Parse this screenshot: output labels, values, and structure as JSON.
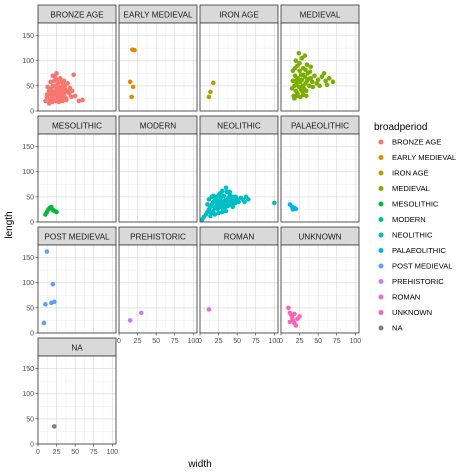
{
  "chart_data": {
    "type": "scatter",
    "facet_by": "broadperiod",
    "xlabel": "width",
    "ylabel": "length",
    "xlim": [
      0,
      105
    ],
    "ylim": [
      0,
      175
    ],
    "x_ticks": [
      0,
      25,
      50,
      75,
      100
    ],
    "y_ticks": [
      0,
      50,
      100,
      150
    ],
    "grid": true,
    "legend_title": "broadperiod",
    "legend_placement": "right",
    "panels": [
      {
        "name": "BRONZE AGE",
        "color": "#F8766D",
        "points": [
          [
            10,
            20
          ],
          [
            12,
            28
          ],
          [
            14,
            35
          ],
          [
            15,
            40
          ],
          [
            16,
            22
          ],
          [
            18,
            30
          ],
          [
            18,
            45
          ],
          [
            20,
            50
          ],
          [
            20,
            25
          ],
          [
            22,
            38
          ],
          [
            22,
            60
          ],
          [
            24,
            32
          ],
          [
            25,
            44
          ],
          [
            26,
            28
          ],
          [
            27,
            55
          ],
          [
            28,
            40
          ],
          [
            29,
            34
          ],
          [
            30,
            48
          ],
          [
            30,
            30
          ],
          [
            31,
            42
          ],
          [
            32,
            26
          ],
          [
            33,
            36
          ],
          [
            34,
            52
          ],
          [
            35,
            30
          ],
          [
            36,
            45
          ],
          [
            37,
            38
          ],
          [
            38,
            22
          ],
          [
            40,
            40
          ],
          [
            42,
            35
          ],
          [
            45,
            28
          ],
          [
            20,
            70
          ],
          [
            23,
            68
          ],
          [
            25,
            75
          ],
          [
            30,
            65
          ],
          [
            35,
            60
          ],
          [
            40,
            55
          ],
          [
            48,
            72
          ],
          [
            15,
            15
          ],
          [
            19,
            18
          ],
          [
            24,
            20
          ],
          [
            28,
            18
          ],
          [
            33,
            20
          ],
          [
            38,
            25
          ],
          [
            13,
            48
          ],
          [
            17,
            58
          ],
          [
            26,
            62
          ],
          [
            32,
            58
          ],
          [
            36,
            50
          ],
          [
            43,
            46
          ],
          [
            50,
            30
          ],
          [
            55,
            20
          ],
          [
            60,
            22
          ],
          [
            46,
            40
          ],
          [
            12,
            32
          ],
          [
            21,
            34
          ],
          [
            29,
            24
          ],
          [
            34,
            44
          ],
          [
            24,
            50
          ],
          [
            18,
            38
          ],
          [
            27,
            36
          ]
        ]
      },
      {
        "name": "EARLY MEDIEVAL",
        "color": "#DE8C00",
        "points": [
          [
            18,
            122
          ],
          [
            21,
            121
          ],
          [
            15,
            58
          ],
          [
            19,
            48
          ],
          [
            17,
            28
          ]
        ]
      },
      {
        "name": "IRON AGE",
        "color": "#B79F00",
        "points": [
          [
            18,
            56
          ],
          [
            14,
            38
          ],
          [
            12,
            28
          ]
        ]
      },
      {
        "name": "MEDIEVAL",
        "color": "#7CAE00",
        "points": [
          [
            15,
            45
          ],
          [
            16,
            60
          ],
          [
            17,
            30
          ],
          [
            18,
            50
          ],
          [
            19,
            70
          ],
          [
            20,
            40
          ],
          [
            21,
            55
          ],
          [
            22,
            35
          ],
          [
            23,
            65
          ],
          [
            24,
            48
          ],
          [
            25,
            80
          ],
          [
            26,
            58
          ],
          [
            27,
            42
          ],
          [
            28,
            62
          ],
          [
            29,
            50
          ],
          [
            30,
            72
          ],
          [
            31,
            45
          ],
          [
            32,
            68
          ],
          [
            33,
            55
          ],
          [
            34,
            40
          ],
          [
            35,
            60
          ],
          [
            36,
            75
          ],
          [
            38,
            50
          ],
          [
            40,
            65
          ],
          [
            42,
            58
          ],
          [
            45,
            70
          ],
          [
            48,
            55
          ],
          [
            50,
            62
          ],
          [
            55,
            68
          ],
          [
            60,
            60
          ],
          [
            65,
            65
          ],
          [
            70,
            58
          ],
          [
            20,
            100
          ],
          [
            22,
            90
          ],
          [
            25,
            95
          ],
          [
            28,
            105
          ],
          [
            30,
            85
          ],
          [
            35,
            92
          ],
          [
            40,
            88
          ],
          [
            18,
            25
          ],
          [
            22,
            30
          ],
          [
            26,
            28
          ],
          [
            30,
            32
          ],
          [
            24,
            115
          ],
          [
            32,
            110
          ],
          [
            16,
            80
          ],
          [
            19,
            85
          ],
          [
            27,
            72
          ],
          [
            33,
            82
          ],
          [
            37,
            64
          ],
          [
            43,
            48
          ],
          [
            52,
            50
          ],
          [
            58,
            75
          ],
          [
            62,
            52
          ],
          [
            21,
            62
          ],
          [
            29,
            38
          ],
          [
            34,
            30
          ],
          [
            39,
            78
          ]
        ]
      },
      {
        "name": "MESOLITHIC",
        "color": "#00BA38",
        "points": [
          [
            10,
            15
          ],
          [
            12,
            20
          ],
          [
            14,
            25
          ],
          [
            16,
            28
          ],
          [
            18,
            30
          ],
          [
            20,
            24
          ],
          [
            22,
            22
          ],
          [
            25,
            20
          ]
        ]
      },
      {
        "name": "MODERN",
        "color": "#00C08B",
        "points": []
      },
      {
        "name": "NEOLITHIC",
        "color": "#00BFC4",
        "points": [
          [
            5,
            10
          ],
          [
            8,
            15
          ],
          [
            10,
            20
          ],
          [
            12,
            25
          ],
          [
            14,
            30
          ],
          [
            15,
            18
          ],
          [
            16,
            35
          ],
          [
            18,
            22
          ],
          [
            18,
            40
          ],
          [
            20,
            28
          ],
          [
            20,
            45
          ],
          [
            22,
            32
          ],
          [
            22,
            50
          ],
          [
            24,
            26
          ],
          [
            24,
            38
          ],
          [
            25,
            42
          ],
          [
            26,
            30
          ],
          [
            26,
            55
          ],
          [
            28,
            35
          ],
          [
            28,
            48
          ],
          [
            30,
            28
          ],
          [
            30,
            40
          ],
          [
            32,
            36
          ],
          [
            32,
            52
          ],
          [
            34,
            30
          ],
          [
            34,
            44
          ],
          [
            36,
            38
          ],
          [
            36,
            60
          ],
          [
            38,
            32
          ],
          [
            38,
            48
          ],
          [
            40,
            35
          ],
          [
            40,
            55
          ],
          [
            42,
            40
          ],
          [
            44,
            30
          ],
          [
            44,
            50
          ],
          [
            46,
            42
          ],
          [
            48,
            38
          ],
          [
            50,
            45
          ],
          [
            52,
            40
          ],
          [
            55,
            48
          ],
          [
            58,
            44
          ],
          [
            60,
            40
          ],
          [
            62,
            50
          ],
          [
            65,
            45
          ],
          [
            12,
            45
          ],
          [
            16,
            50
          ],
          [
            10,
            35
          ],
          [
            14,
            12
          ],
          [
            20,
            15
          ],
          [
            25,
            18
          ],
          [
            30,
            20
          ],
          [
            35,
            22
          ],
          [
            30,
            62
          ],
          [
            35,
            68
          ],
          [
            40,
            60
          ],
          [
            28,
            58
          ],
          [
            100,
            38
          ],
          [
            3,
            5
          ],
          [
            18,
            52
          ],
          [
            22,
            40
          ],
          [
            27,
            44
          ],
          [
            33,
            40
          ],
          [
            37,
            45
          ],
          [
            42,
            48
          ],
          [
            45,
            36
          ],
          [
            48,
            50
          ],
          [
            24,
            34
          ],
          [
            29,
            30
          ]
        ]
      },
      {
        "name": "PALAEOLITHIC",
        "color": "#00B4F0",
        "points": [
          [
            12,
            35
          ],
          [
            15,
            30
          ],
          [
            18,
            28
          ],
          [
            20,
            26
          ],
          [
            16,
            25
          ]
        ]
      },
      {
        "name": "POST MEDIEVAL",
        "color": "#619CFF",
        "points": [
          [
            12,
            162
          ],
          [
            20,
            97
          ],
          [
            22,
            62
          ],
          [
            18,
            60
          ],
          [
            10,
            57
          ],
          [
            8,
            20
          ]
        ]
      },
      {
        "name": "PREHISTORIC",
        "color": "#C77CFF",
        "points": [
          [
            30,
            40
          ],
          [
            15,
            25
          ]
        ]
      },
      {
        "name": "ROMAN",
        "color": "#F564E3",
        "points": [
          [
            12,
            47
          ]
        ]
      },
      {
        "name": "UNKNOWN",
        "color": "#FF64B0",
        "points": [
          [
            10,
            50
          ],
          [
            12,
            40
          ],
          [
            14,
            35
          ],
          [
            15,
            30
          ],
          [
            16,
            25
          ],
          [
            18,
            20
          ],
          [
            20,
            15
          ],
          [
            22,
            28
          ],
          [
            25,
            33
          ],
          [
            12,
            22
          ],
          [
            18,
            38
          ]
        ]
      },
      {
        "name": "NA",
        "color": "#7F7F7F",
        "points": [
          [
            22,
            35
          ]
        ]
      }
    ]
  }
}
